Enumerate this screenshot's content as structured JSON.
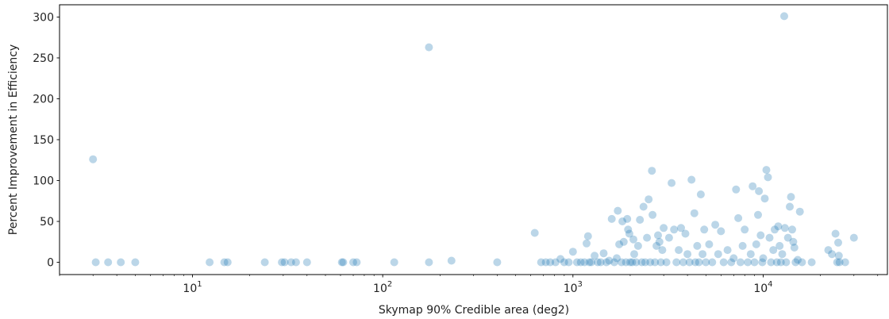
{
  "chart_data": {
    "type": "scatter",
    "title": "",
    "xlabel": "Skymap 90% Credible area (deg2)",
    "ylabel": "Percent Improvement in Efficiency",
    "x_scale": "log",
    "xlim": [
      2,
      45000
    ],
    "ylim": [
      -15,
      315
    ],
    "x_ticks": [
      {
        "value": 10,
        "base": "10",
        "exp": "1"
      },
      {
        "value": 100,
        "base": "10",
        "exp": "2"
      },
      {
        "value": 1000,
        "base": "10",
        "exp": "3"
      },
      {
        "value": 10000,
        "base": "10",
        "exp": "4"
      }
    ],
    "y_ticks": [
      {
        "value": 0,
        "label": "0"
      },
      {
        "value": 50,
        "label": "50"
      },
      {
        "value": 100,
        "label": "100"
      },
      {
        "value": 150,
        "label": "150"
      },
      {
        "value": 200,
        "label": "200"
      },
      {
        "value": 250,
        "label": "250"
      },
      {
        "value": 300,
        "label": "300"
      }
    ],
    "grid": false,
    "marker_color": "#1f77b4",
    "marker_alpha": 0.3,
    "series": [
      {
        "points": [
          [
            3,
            126
          ],
          [
            3.1,
            0
          ],
          [
            3.6,
            0
          ],
          [
            4.2,
            0
          ],
          [
            5,
            0
          ],
          [
            12.3,
            0
          ],
          [
            14.7,
            0
          ],
          [
            15.3,
            0
          ],
          [
            24,
            0
          ],
          [
            29.5,
            0
          ],
          [
            30.5,
            0
          ],
          [
            33,
            0
          ],
          [
            35,
            0
          ],
          [
            40,
            0
          ],
          [
            61,
            0
          ],
          [
            62,
            0
          ],
          [
            70,
            0
          ],
          [
            73,
            0
          ],
          [
            115,
            0
          ],
          [
            175,
            0
          ],
          [
            175,
            263
          ],
          [
            230,
            2
          ],
          [
            400,
            0
          ],
          [
            630,
            36
          ],
          [
            680,
            0
          ],
          [
            720,
            0
          ],
          [
            760,
            0
          ],
          [
            810,
            0
          ],
          [
            860,
            4
          ],
          [
            900,
            0
          ],
          [
            950,
            0
          ],
          [
            1000,
            13
          ],
          [
            1050,
            0
          ],
          [
            1100,
            0
          ],
          [
            1150,
            0
          ],
          [
            1180,
            23
          ],
          [
            1200,
            32
          ],
          [
            1220,
            0
          ],
          [
            1250,
            0
          ],
          [
            1300,
            8
          ],
          [
            1350,
            0
          ],
          [
            1400,
            0
          ],
          [
            1450,
            11
          ],
          [
            1500,
            0
          ],
          [
            1550,
            2
          ],
          [
            1600,
            53
          ],
          [
            1650,
            0
          ],
          [
            1700,
            5
          ],
          [
            1720,
            63
          ],
          [
            1750,
            22
          ],
          [
            1800,
            0
          ],
          [
            1820,
            50
          ],
          [
            1850,
            25
          ],
          [
            1900,
            0
          ],
          [
            1930,
            53
          ],
          [
            1950,
            40
          ],
          [
            1980,
            35
          ],
          [
            2000,
            0
          ],
          [
            2050,
            0
          ],
          [
            2080,
            28
          ],
          [
            2100,
            10
          ],
          [
            2150,
            0
          ],
          [
            2200,
            20
          ],
          [
            2250,
            52
          ],
          [
            2300,
            0
          ],
          [
            2350,
            68
          ],
          [
            2400,
            0
          ],
          [
            2450,
            30
          ],
          [
            2500,
            77
          ],
          [
            2550,
            0
          ],
          [
            2600,
            112
          ],
          [
            2620,
            58
          ],
          [
            2700,
            0
          ],
          [
            2750,
            20
          ],
          [
            2800,
            33
          ],
          [
            2850,
            25
          ],
          [
            2900,
            0
          ],
          [
            2950,
            15
          ],
          [
            3000,
            42
          ],
          [
            3100,
            0
          ],
          [
            3200,
            30
          ],
          [
            3300,
            97
          ],
          [
            3400,
            40
          ],
          [
            3500,
            0
          ],
          [
            3600,
            15
          ],
          [
            3700,
            42
          ],
          [
            3800,
            0
          ],
          [
            3900,
            35
          ],
          [
            4000,
            10
          ],
          [
            4100,
            0
          ],
          [
            4200,
            101
          ],
          [
            4350,
            60
          ],
          [
            4400,
            0
          ],
          [
            4500,
            20
          ],
          [
            4600,
            0
          ],
          [
            4700,
            83
          ],
          [
            4800,
            10
          ],
          [
            4900,
            40
          ],
          [
            5000,
            0
          ],
          [
            5200,
            22
          ],
          [
            5400,
            0
          ],
          [
            5600,
            46
          ],
          [
            5800,
            10
          ],
          [
            6000,
            38
          ],
          [
            6200,
            0
          ],
          [
            6500,
            15
          ],
          [
            6800,
            0
          ],
          [
            7000,
            5
          ],
          [
            7200,
            89
          ],
          [
            7400,
            54
          ],
          [
            7600,
            0
          ],
          [
            7800,
            20
          ],
          [
            8000,
            40
          ],
          [
            8300,
            0
          ],
          [
            8600,
            10
          ],
          [
            8800,
            93
          ],
          [
            9000,
            0
          ],
          [
            9200,
            22
          ],
          [
            9400,
            58
          ],
          [
            9500,
            87
          ],
          [
            9700,
            33
          ],
          [
            9900,
            0
          ],
          [
            10000,
            5
          ],
          [
            10200,
            78
          ],
          [
            10400,
            113
          ],
          [
            10600,
            104
          ],
          [
            10800,
            30
          ],
          [
            11000,
            0
          ],
          [
            11300,
            15
          ],
          [
            11500,
            40
          ],
          [
            11800,
            0
          ],
          [
            12000,
            44
          ],
          [
            12200,
            20
          ],
          [
            12400,
            0
          ],
          [
            12600,
            10
          ],
          [
            12900,
            301
          ],
          [
            13000,
            42
          ],
          [
            13200,
            0
          ],
          [
            13500,
            30
          ],
          [
            13800,
            68
          ],
          [
            14000,
            80
          ],
          [
            14200,
            40
          ],
          [
            14400,
            25
          ],
          [
            14600,
            18
          ],
          [
            14800,
            0
          ],
          [
            15200,
            3
          ],
          [
            15600,
            62
          ],
          [
            16000,
            0
          ],
          [
            18000,
            0
          ],
          [
            22000,
            15
          ],
          [
            23000,
            10
          ],
          [
            24000,
            35
          ],
          [
            24500,
            0
          ],
          [
            24800,
            24
          ],
          [
            25000,
            8
          ],
          [
            25200,
            0
          ],
          [
            27000,
            0
          ],
          [
            30000,
            30
          ]
        ]
      }
    ]
  }
}
